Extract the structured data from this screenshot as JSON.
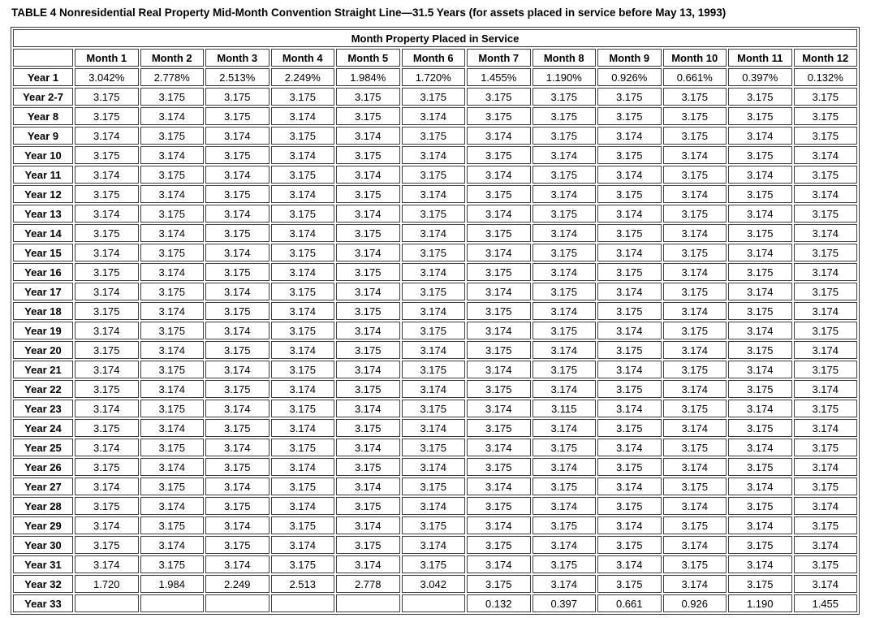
{
  "title": "TABLE 4 Nonresidential Real Property Mid-Month Convention Straight Line—31.5 Years (for assets placed in service before May 13, 1993)",
  "table": {
    "span_header": "Month Property Placed in Service",
    "corner_label": "",
    "column_headers": [
      "Month 1",
      "Month 2",
      "Month 3",
      "Month 4",
      "Month 5",
      "Month 6",
      "Month 7",
      "Month 8",
      "Month 9",
      "Month 10",
      "Month 11",
      "Month 12"
    ],
    "rows": [
      {
        "label": "Year 1",
        "values": [
          "3.042%",
          "2.778%",
          "2.513%",
          "2.249%",
          "1.984%",
          "1.720%",
          "1.455%",
          "1.190%",
          "0.926%",
          "0.661%",
          "0.397%",
          "0.132%"
        ]
      },
      {
        "label": "Year 2-7",
        "values": [
          "3.175",
          "3.175",
          "3.175",
          "3.175",
          "3.175",
          "3.175",
          "3.175",
          "3.175",
          "3.175",
          "3.175",
          "3.175",
          "3.175"
        ]
      },
      {
        "label": "Year 8",
        "values": [
          "3.175",
          "3.174",
          "3.175",
          "3.174",
          "3.175",
          "3.174",
          "3.175",
          "3.175",
          "3.175",
          "3.175",
          "3.175",
          "3.175"
        ]
      },
      {
        "label": "Year 9",
        "values": [
          "3.174",
          "3.175",
          "3.174",
          "3.175",
          "3.174",
          "3.175",
          "3.174",
          "3.175",
          "3.174",
          "3.175",
          "3.174",
          "3.175"
        ]
      },
      {
        "label": "Year 10",
        "values": [
          "3.175",
          "3.174",
          "3.175",
          "3.174",
          "3.175",
          "3.174",
          "3.175",
          "3.174",
          "3.175",
          "3.174",
          "3.175",
          "3.174"
        ]
      },
      {
        "label": "Year 11",
        "values": [
          "3.174",
          "3.175",
          "3.174",
          "3.175",
          "3.174",
          "3.175",
          "3.174",
          "3.175",
          "3.174",
          "3.175",
          "3.174",
          "3.175"
        ]
      },
      {
        "label": "Year 12",
        "values": [
          "3.175",
          "3.174",
          "3.175",
          "3.174",
          "3.175",
          "3.174",
          "3.175",
          "3.174",
          "3.175",
          "3.174",
          "3.175",
          "3.174"
        ]
      },
      {
        "label": "Year 13",
        "values": [
          "3.174",
          "3.175",
          "3.174",
          "3.175",
          "3.174",
          "3.175",
          "3.174",
          "3.175",
          "3.174",
          "3.175",
          "3.174",
          "3.175"
        ]
      },
      {
        "label": "Year 14",
        "values": [
          "3.175",
          "3.174",
          "3.175",
          "3.174",
          "3.175",
          "3.174",
          "3.175",
          "3.174",
          "3.175",
          "3.174",
          "3.175",
          "3.174"
        ]
      },
      {
        "label": "Year 15",
        "values": [
          "3.174",
          "3.175",
          "3.174",
          "3.175",
          "3.174",
          "3.175",
          "3.174",
          "3.175",
          "3.174",
          "3.175",
          "3.174",
          "3.175"
        ]
      },
      {
        "label": "Year 16",
        "values": [
          "3.175",
          "3.174",
          "3.175",
          "3.174",
          "3.175",
          "3.174",
          "3.175",
          "3.174",
          "3.175",
          "3.174",
          "3.175",
          "3.174"
        ]
      },
      {
        "label": "Year 17",
        "values": [
          "3.174",
          "3.175",
          "3.174",
          "3.175",
          "3.174",
          "3.175",
          "3.174",
          "3.175",
          "3.174",
          "3.175",
          "3.174",
          "3.175"
        ]
      },
      {
        "label": "Year 18",
        "values": [
          "3.175",
          "3.174",
          "3.175",
          "3.174",
          "3.175",
          "3.174",
          "3.175",
          "3.174",
          "3.175",
          "3.174",
          "3.175",
          "3.174"
        ]
      },
      {
        "label": "Year 19",
        "values": [
          "3.174",
          "3.175",
          "3.174",
          "3.175",
          "3.174",
          "3.175",
          "3.174",
          "3.175",
          "3.174",
          "3.175",
          "3.174",
          "3.175"
        ]
      },
      {
        "label": "Year 20",
        "values": [
          "3.175",
          "3.174",
          "3.175",
          "3.174",
          "3.175",
          "3.174",
          "3.175",
          "3.174",
          "3.175",
          "3.174",
          "3.175",
          "3.174"
        ]
      },
      {
        "label": "Year 21",
        "values": [
          "3.174",
          "3.175",
          "3.174",
          "3.175",
          "3.174",
          "3.175",
          "3.174",
          "3.175",
          "3.174",
          "3.175",
          "3.174",
          "3.175"
        ]
      },
      {
        "label": "Year 22",
        "values": [
          "3.175",
          "3.174",
          "3.175",
          "3.174",
          "3.175",
          "3.174",
          "3.175",
          "3.174",
          "3.175",
          "3.174",
          "3.175",
          "3.174"
        ]
      },
      {
        "label": "Year 23",
        "values": [
          "3.174",
          "3.175",
          "3.174",
          "3.175",
          "3.174",
          "3.175",
          "3.174",
          "3.115",
          "3.174",
          "3.175",
          "3.174",
          "3.175"
        ]
      },
      {
        "label": "Year 24",
        "values": [
          "3.175",
          "3.174",
          "3.175",
          "3.174",
          "3.175",
          "3.174",
          "3.175",
          "3.174",
          "3.175",
          "3.174",
          "3.175",
          "3.174"
        ]
      },
      {
        "label": "Year 25",
        "values": [
          "3.174",
          "3.175",
          "3.174",
          "3.175",
          "3.174",
          "3.175",
          "3.174",
          "3.175",
          "3.174",
          "3.175",
          "3.174",
          "3.175"
        ]
      },
      {
        "label": "Year 26",
        "values": [
          "3.175",
          "3.174",
          "3.175",
          "3.174",
          "3.175",
          "3.174",
          "3.175",
          "3.174",
          "3.175",
          "3.174",
          "3.175",
          "3.174"
        ]
      },
      {
        "label": "Year 27",
        "values": [
          "3.174",
          "3.175",
          "3.174",
          "3.175",
          "3.174",
          "3.175",
          "3.174",
          "3.175",
          "3.174",
          "3.175",
          "3.174",
          "3.175"
        ]
      },
      {
        "label": "Year 28",
        "values": [
          "3.175",
          "3.174",
          "3.175",
          "3.174",
          "3.175",
          "3.174",
          "3.175",
          "3.174",
          "3.175",
          "3.174",
          "3.175",
          "3.174"
        ]
      },
      {
        "label": "Year 29",
        "values": [
          "3.174",
          "3.175",
          "3.174",
          "3.175",
          "3.174",
          "3.175",
          "3.174",
          "3.175",
          "3.174",
          "3.175",
          "3.174",
          "3.175"
        ]
      },
      {
        "label": "Year 30",
        "values": [
          "3.175",
          "3.174",
          "3.175",
          "3.174",
          "3.175",
          "3.174",
          "3.175",
          "3.174",
          "3.175",
          "3.174",
          "3.175",
          "3.174"
        ]
      },
      {
        "label": "Year 31",
        "values": [
          "3.174",
          "3.175",
          "3.174",
          "3.175",
          "3.174",
          "3.175",
          "3.174",
          "3.175",
          "3.174",
          "3.175",
          "3.174",
          "3.175"
        ]
      },
      {
        "label": "Year 32",
        "values": [
          "1.720",
          "1.984",
          "2.249",
          "2.513",
          "2.778",
          "3.042",
          "3.175",
          "3.174",
          "3.175",
          "3.174",
          "3.175",
          "3.174"
        ]
      },
      {
        "label": "Year 33",
        "values": [
          "",
          "",
          "",
          "",
          "",
          "",
          "0.132",
          "0.397",
          "0.661",
          "0.926",
          "1.190",
          "1.455"
        ]
      }
    ]
  }
}
